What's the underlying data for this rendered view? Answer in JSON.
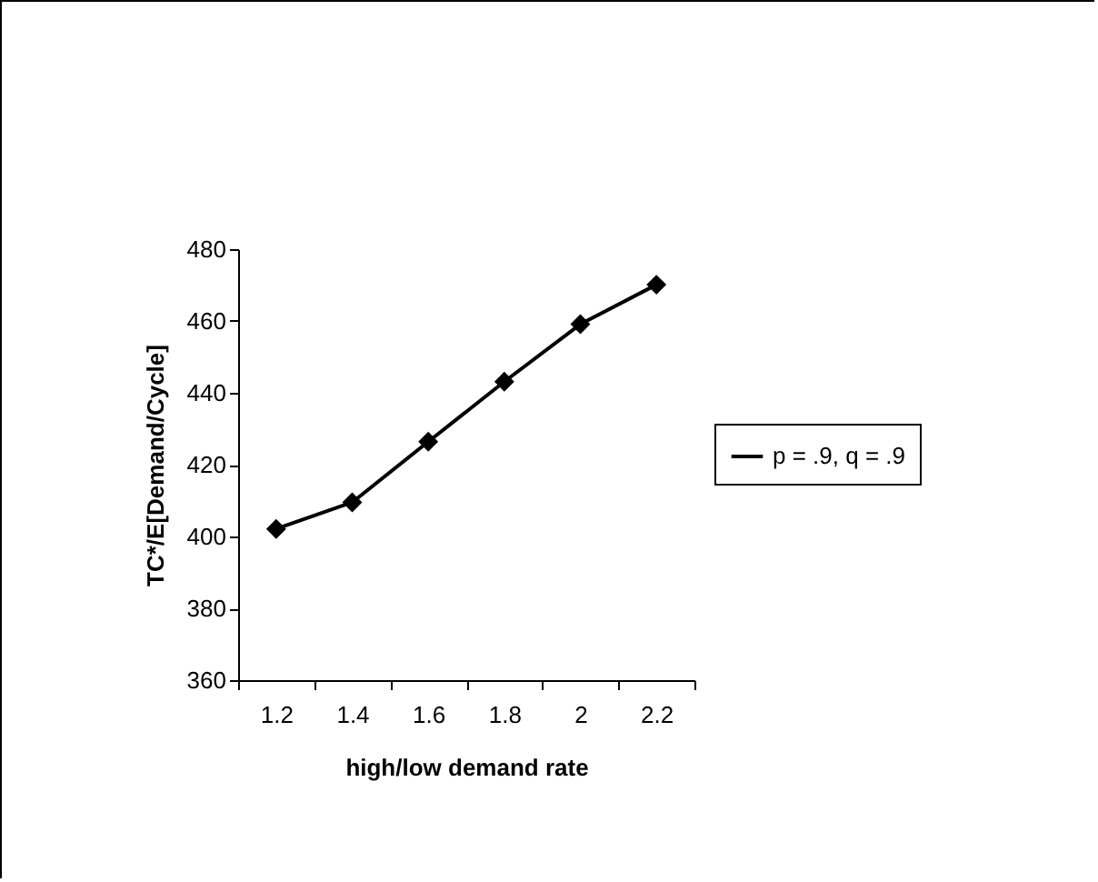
{
  "chart_data": {
    "type": "line",
    "xlabel": "high/low demand rate",
    "ylabel": "TC*/E[Demand/Cycle]",
    "categories": [
      "1.2",
      "1.4",
      "1.6",
      "1.8",
      "2",
      "2.2"
    ],
    "series": [
      {
        "name": "p = .9, q = .9",
        "color": "#000000",
        "values": [
          402.1,
          409.5,
          426.4,
          443.1,
          459.1,
          470.1
        ]
      }
    ],
    "ylim": [
      360,
      480
    ],
    "yticks": [
      360,
      380,
      400,
      420,
      440,
      460,
      480
    ],
    "grid": false,
    "legend": "right",
    "marker": "diamond",
    "line_style": "solid"
  }
}
